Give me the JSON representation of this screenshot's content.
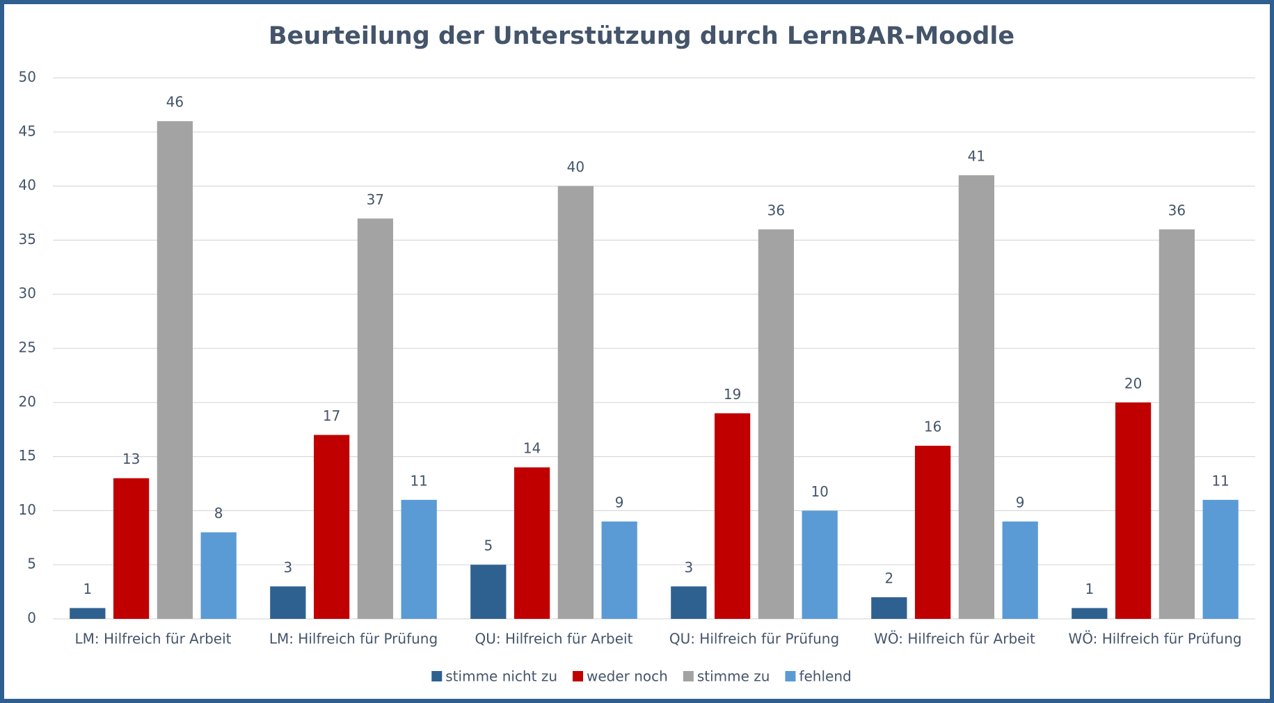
{
  "chart_data": {
    "type": "bar",
    "title": "Beurteilung der Unterstützung durch LernBAR-Moodle",
    "categories": [
      "LM: Hilfreich für Arbeit",
      "LM: Hilfreich für Prüfung",
      "QU: Hilfreich für Arbeit",
      "QU: Hilfreich für Prüfung",
      "WÖ: Hilfreich für Arbeit",
      "WÖ: Hilfreich für Prüfung"
    ],
    "series": [
      {
        "name": "stimme nicht zu",
        "color": "#2e6190",
        "values": [
          1,
          3,
          5,
          3,
          2,
          1
        ]
      },
      {
        "name": "weder noch",
        "color": "#c00000",
        "values": [
          13,
          17,
          14,
          19,
          16,
          20
        ]
      },
      {
        "name": "stimme zu",
        "color": "#a3a3a3",
        "values": [
          46,
          37,
          40,
          36,
          41,
          36
        ]
      },
      {
        "name": "fehlend",
        "color": "#5b9bd5",
        "values": [
          8,
          11,
          9,
          10,
          9,
          11
        ]
      }
    ],
    "ylim": [
      0,
      50
    ],
    "yticks": [
      0,
      5,
      10,
      15,
      20,
      25,
      30,
      35,
      40,
      45,
      50
    ],
    "grid": true,
    "legend": "bottom"
  }
}
